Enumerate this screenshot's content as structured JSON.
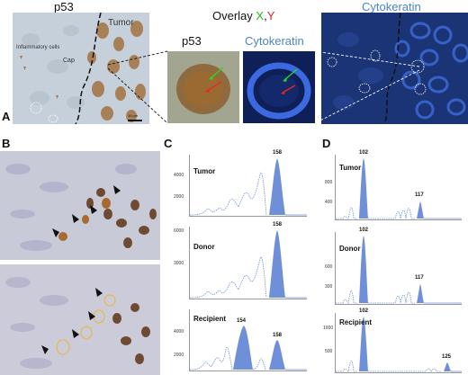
{
  "panel_a": {
    "label": "A",
    "left_title": "p53",
    "left_labels": {
      "tumor": "Tumor",
      "inflammatory": "Inflammatory cells",
      "cap": "Cap",
      "scale": "10 μm"
    },
    "overlay_title_prefix": "Overlay ",
    "overlay_x": "X",
    "overlay_comma": ",",
    "overlay_y": "Y",
    "inset_p53": "p53",
    "inset_ck": "Cytokeratin",
    "right_title": "Cytokeratin",
    "colors": {
      "x": "#22bb22",
      "y": "#dd2222",
      "cytokeratin_text": "#4a86c8"
    }
  },
  "panel_b": {
    "label": "B"
  },
  "panel_c": {
    "label": "C",
    "rows": [
      {
        "name": "Tumor",
        "ticks": [
          "4000",
          "2000"
        ],
        "peaks": [
          "158"
        ]
      },
      {
        "name": "Donor",
        "ticks": [
          "6000",
          "3000"
        ],
        "peaks": [
          "158"
        ]
      },
      {
        "name": "Recipient",
        "ticks": [
          "4000",
          "2000"
        ],
        "peaks": [
          "154",
          "158"
        ]
      }
    ]
  },
  "panel_d": {
    "label": "D",
    "rows": [
      {
        "name": "Tumor",
        "ticks": [
          "800",
          "400"
        ],
        "peaks": [
          "102",
          "117"
        ]
      },
      {
        "name": "Donor",
        "ticks": [
          "600",
          "300"
        ],
        "peaks": [
          "102",
          "117"
        ]
      },
      {
        "name": "Recipient",
        "ticks": [
          "1000",
          "500"
        ],
        "peaks": [
          "102",
          "125"
        ]
      }
    ]
  }
}
